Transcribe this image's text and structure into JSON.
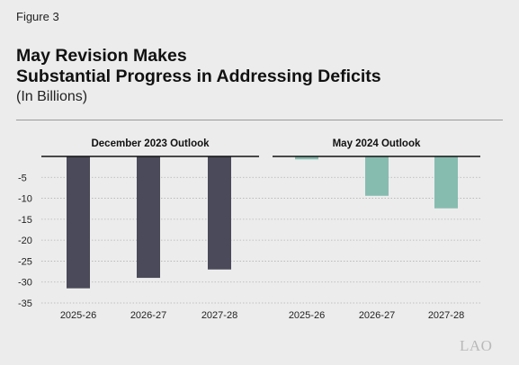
{
  "figure_label": "Figure 3",
  "watermark": "LAO",
  "chart_data": {
    "type": "bar",
    "title": "May Revision Makes Substantial Progress in Addressing Deficits",
    "title_lines": [
      "May Revision Makes",
      "Substantial Progress in Addressing Deficits"
    ],
    "subtitle": "(In Billions)",
    "xlabel": "",
    "ylabel": "",
    "ylim": [
      -35,
      0
    ],
    "yticks": [
      -5,
      -10,
      -15,
      -20,
      -25,
      -30,
      -35
    ],
    "ytick_labels": [
      "-5",
      "-10",
      "-15",
      "-20",
      "-25",
      "-30",
      "-35"
    ],
    "grid": true,
    "legend": "none",
    "panels": [
      {
        "title": "December 2023 Outlook",
        "color": "#4a4a5a",
        "categories": [
          "2025-26",
          "2026-27",
          "2027-28"
        ],
        "values": [
          -31.5,
          -29,
          -27
        ]
      },
      {
        "title": "May 2024 Outlook",
        "color": "#86bcb0",
        "categories": [
          "2025-26",
          "2026-27",
          "2027-28"
        ],
        "values": [
          -0.7,
          -9.4,
          -12.4
        ]
      }
    ]
  }
}
